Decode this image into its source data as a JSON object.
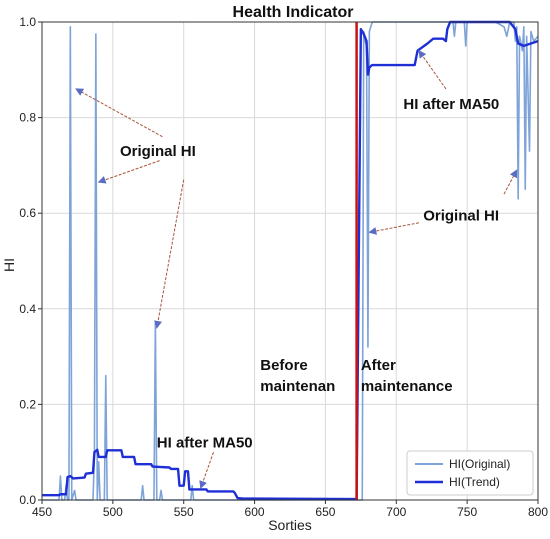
{
  "chart_data": {
    "type": "line",
    "title": "Health Indicator",
    "xlabel": "Sorties",
    "ylabel": "HI",
    "xlim": [
      450,
      800
    ],
    "ylim": [
      0,
      1.0
    ],
    "xticks": [
      450,
      500,
      550,
      600,
      650,
      700,
      750,
      800
    ],
    "yticks": [
      0.0,
      0.2,
      0.4,
      0.6,
      0.8,
      1.0
    ],
    "x_tick_labels": [
      "450",
      "500",
      "550",
      "600",
      "650",
      "700",
      "750",
      "800"
    ],
    "y_tick_labels": [
      "0.0",
      "0.2",
      "0.4",
      "0.6",
      "0.8",
      "1.0"
    ],
    "grid": true,
    "legend_position": "bottom-right",
    "series": [
      {
        "name": "HI(Original)",
        "color": "#7ea3d8",
        "points": [
          [
            450,
            0
          ],
          [
            462,
            0
          ],
          [
            463,
            0.05
          ],
          [
            464,
            0
          ],
          [
            466,
            0
          ],
          [
            467,
            0.03
          ],
          [
            468,
            0
          ],
          [
            469,
            0
          ],
          [
            470,
            0.99
          ],
          [
            471,
            0
          ],
          [
            473,
            0.02
          ],
          [
            474,
            0
          ],
          [
            486,
            0
          ],
          [
            487,
            0.1
          ],
          [
            488,
            0.975
          ],
          [
            489,
            0
          ],
          [
            490,
            0.08
          ],
          [
            491,
            0
          ],
          [
            494,
            0
          ],
          [
            495,
            0.26
          ],
          [
            496,
            0
          ],
          [
            520,
            0
          ],
          [
            521,
            0.03
          ],
          [
            522,
            0
          ],
          [
            529,
            0
          ],
          [
            530,
            0.37
          ],
          [
            531,
            0
          ],
          [
            533,
            0
          ],
          [
            534,
            0.02
          ],
          [
            535,
            0
          ],
          [
            555,
            0
          ],
          [
            556,
            0.03
          ],
          [
            557,
            0
          ],
          [
            600,
            0
          ],
          [
            672,
            0
          ],
          [
            676,
            0
          ],
          [
            677,
            0.98
          ],
          [
            678,
            0.96
          ],
          [
            679,
            0.95
          ],
          [
            680,
            0.32
          ],
          [
            681,
            0.98
          ],
          [
            683,
            1.0
          ],
          [
            700,
            1.0
          ],
          [
            740,
            1.0
          ],
          [
            741,
            0.97
          ],
          [
            742,
            1.0
          ],
          [
            748,
            1.0
          ],
          [
            749,
            0.95
          ],
          [
            750,
            1.0
          ],
          [
            770,
            1.0
          ],
          [
            776,
            0.99
          ],
          [
            778,
            0.97
          ],
          [
            780,
            1.0
          ],
          [
            783,
            1.0
          ],
          [
            784,
            0.96
          ],
          [
            785,
            0.99
          ],
          [
            786,
            0.63
          ],
          [
            787,
            0.97
          ],
          [
            789,
            0.94
          ],
          [
            790,
            0.99
          ],
          [
            791,
            0.65
          ],
          [
            792,
            0.97
          ],
          [
            794,
            0.73
          ],
          [
            795,
            0.98
          ],
          [
            797,
            0.96
          ],
          [
            800,
            0.97
          ]
        ]
      },
      {
        "name": "HI(Trend)",
        "color": "#1f2fd6",
        "points": [
          [
            450,
            0.01
          ],
          [
            462,
            0.01
          ],
          [
            463,
            0.012
          ],
          [
            467,
            0.012
          ],
          [
            468,
            0.048
          ],
          [
            470,
            0.05
          ],
          [
            472,
            0.045
          ],
          [
            480,
            0.047
          ],
          [
            481,
            0.055
          ],
          [
            486,
            0.057
          ],
          [
            487,
            0.1
          ],
          [
            489,
            0.105
          ],
          [
            490,
            0.09
          ],
          [
            495,
            0.09
          ],
          [
            496,
            0.104
          ],
          [
            506,
            0.104
          ],
          [
            507,
            0.09
          ],
          [
            515,
            0.09
          ],
          [
            516,
            0.075
          ],
          [
            527,
            0.075
          ],
          [
            528,
            0.07
          ],
          [
            540,
            0.068
          ],
          [
            541,
            0.065
          ],
          [
            546,
            0.065
          ],
          [
            547,
            0.03
          ],
          [
            550,
            0.03
          ],
          [
            551,
            0.06
          ],
          [
            553,
            0.06
          ],
          [
            554,
            0.022
          ],
          [
            566,
            0.022
          ],
          [
            567,
            0.018
          ],
          [
            585,
            0.018
          ],
          [
            586,
            0.015
          ],
          [
            588,
            0.004
          ],
          [
            592,
            0.003
          ],
          [
            672,
            0.002
          ],
          [
            675,
            0.985
          ],
          [
            677,
            0.975
          ],
          [
            679,
            0.96
          ],
          [
            680,
            0.89
          ],
          [
            681,
            0.905
          ],
          [
            683,
            0.91
          ],
          [
            713,
            0.91
          ],
          [
            715,
            0.94
          ],
          [
            722,
            0.955
          ],
          [
            726,
            0.965
          ],
          [
            733,
            0.965
          ],
          [
            735,
            0.96
          ],
          [
            736,
            0.985
          ],
          [
            738,
            1.0
          ],
          [
            780,
            1.0
          ],
          [
            784,
            0.985
          ],
          [
            786,
            0.955
          ],
          [
            790,
            0.95
          ],
          [
            795,
            0.955
          ],
          [
            800,
            0.96
          ]
        ]
      }
    ],
    "vline": {
      "x": 672,
      "color": "#cc1111"
    },
    "annotations": [
      {
        "id": "orig-left",
        "text": "Original HI",
        "text_x": 505,
        "text_y": 0.72,
        "arrows": [
          {
            "from": [
              535,
              0.76
            ],
            "to": [
              474,
              0.86
            ]
          },
          {
            "from": [
              533,
              0.71
            ],
            "to": [
              490,
              0.665
            ]
          },
          {
            "from": [
              550,
              0.67
            ],
            "to": [
              531,
              0.36
            ]
          }
        ]
      },
      {
        "id": "hi-ma50-left",
        "text": "HI after MA50",
        "text_x": 531,
        "text_y": 0.11,
        "arrows": [
          {
            "from": [
              571,
              0.1
            ],
            "to": [
              562,
              0.025
            ]
          }
        ]
      },
      {
        "id": "before",
        "text": "Before",
        "text_x": 604,
        "text_y": 0.272,
        "arrows": []
      },
      {
        "id": "maintenan",
        "text": "maintenan",
        "text_x": 604,
        "text_y": 0.228,
        "arrows": []
      },
      {
        "id": "after",
        "text": "After",
        "text_x": 675,
        "text_y": 0.272,
        "arrows": []
      },
      {
        "id": "maintenance",
        "text": "maintenance",
        "text_x": 675,
        "text_y": 0.228,
        "arrows": []
      },
      {
        "id": "hi-ma50-right",
        "text": "HI after MA50",
        "text_x": 705,
        "text_y": 0.818,
        "arrows": [
          {
            "from": [
              735,
              0.86
            ],
            "to": [
              716,
              0.94
            ]
          }
        ]
      },
      {
        "id": "orig-right",
        "text": "Original HI",
        "text_x": 719,
        "text_y": 0.585,
        "arrows": [
          {
            "from": [
              716,
              0.58
            ],
            "to": [
              681,
              0.56
            ]
          },
          {
            "from": [
              776,
              0.64
            ],
            "to": [
              785,
              0.69
            ]
          }
        ]
      }
    ]
  }
}
